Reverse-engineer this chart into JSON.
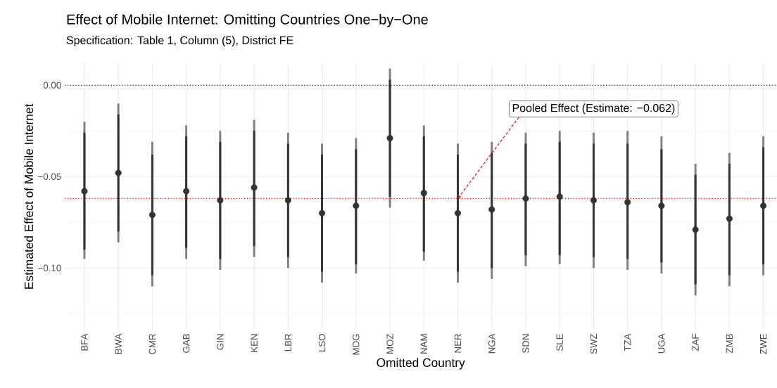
{
  "chart_data": {
    "type": "scatter",
    "title": "Effect of Mobile Internet: Omitting Countries One−by−One",
    "subtitle": "Specification: Table 1, Column (5), District FE",
    "xlabel": "Omitted Country",
    "ylabel": "Estimated Effect of Mobile Internet",
    "categories": [
      "BFA",
      "BWA",
      "CMR",
      "GAB",
      "GIN",
      "KEN",
      "LBR",
      "LSO",
      "MDG",
      "MOZ",
      "NAM",
      "NER",
      "NGA",
      "SDN",
      "SLE",
      "SWZ",
      "TZA",
      "UGA",
      "ZAF",
      "ZMB",
      "ZWE"
    ],
    "series": [
      {
        "color": "#7f7f7f",
        "values": [
          -0.058,
          -0.048,
          -0.071,
          -0.058,
          -0.063,
          -0.056,
          -0.063,
          -0.07,
          -0.066,
          -0.029,
          -0.059,
          -0.07,
          -0.068,
          -0.062,
          -0.061,
          -0.063,
          -0.064,
          -0.066,
          -0.079,
          -0.073,
          -0.066
        ],
        "errors": [
          [
            -0.095,
            -0.02
          ],
          [
            -0.086,
            -0.01
          ],
          [
            -0.11,
            -0.031
          ],
          [
            -0.095,
            -0.022
          ],
          [
            -0.101,
            -0.025
          ],
          [
            -0.094,
            -0.019
          ],
          [
            -0.1,
            -0.026
          ],
          [
            -0.108,
            -0.032
          ],
          [
            -0.103,
            -0.029
          ],
          [
            -0.067,
            0.009
          ],
          [
            -0.096,
            -0.022
          ],
          [
            -0.108,
            -0.032
          ],
          [
            -0.106,
            -0.031
          ],
          [
            -0.099,
            -0.026
          ],
          [
            -0.098,
            -0.025
          ],
          [
            -0.1,
            -0.026
          ],
          [
            -0.101,
            -0.025
          ],
          [
            -0.103,
            -0.028
          ],
          [
            -0.115,
            -0.043
          ],
          [
            -0.11,
            -0.037
          ],
          [
            -0.104,
            -0.028
          ]
        ]
      },
      {
        "color": "#333333",
        "marker": "circle",
        "values": [
          -0.058,
          -0.048,
          -0.071,
          -0.058,
          -0.063,
          -0.056,
          -0.063,
          -0.07,
          -0.066,
          -0.029,
          -0.059,
          -0.07,
          -0.068,
          -0.062,
          -0.061,
          -0.063,
          -0.064,
          -0.066,
          -0.079,
          -0.073,
          -0.066
        ],
        "errors": [
          [
            -0.09,
            -0.026
          ],
          [
            -0.08,
            -0.016
          ],
          [
            -0.104,
            -0.038
          ],
          [
            -0.089,
            -0.028
          ],
          [
            -0.095,
            -0.031
          ],
          [
            -0.088,
            -0.025
          ],
          [
            -0.094,
            -0.032
          ],
          [
            -0.102,
            -0.038
          ],
          [
            -0.098,
            -0.035
          ],
          [
            -0.061,
            0.003
          ],
          [
            -0.091,
            -0.028
          ],
          [
            -0.102,
            -0.038
          ],
          [
            -0.1,
            -0.037
          ],
          [
            -0.093,
            -0.032
          ],
          [
            -0.093,
            -0.031
          ],
          [
            -0.094,
            -0.032
          ],
          [
            -0.095,
            -0.032
          ],
          [
            -0.097,
            -0.035
          ],
          [
            -0.109,
            -0.049
          ],
          [
            -0.104,
            -0.043
          ],
          [
            -0.098,
            -0.034
          ]
        ]
      }
    ],
    "ylim": [
      -0.134,
      0.012
    ],
    "yticks": [
      {
        "value": 0,
        "label": "0.00"
      },
      {
        "value": -0.05,
        "label": "−0.05"
      },
      {
        "value": -0.1,
        "label": "−0.10"
      }
    ],
    "grid": true,
    "ref_lines": [
      {
        "axis": "y",
        "value": 0,
        "color": "#000000",
        "line_style": "dotted"
      },
      {
        "axis": "y",
        "value": -0.062,
        "color": "#ff0000",
        "line_style": "dotted"
      }
    ],
    "annotations": [
      {
        "text": "Pooled Effect (Estimate: −0.062)",
        "x": "NER",
        "y": -0.062
      }
    ]
  }
}
